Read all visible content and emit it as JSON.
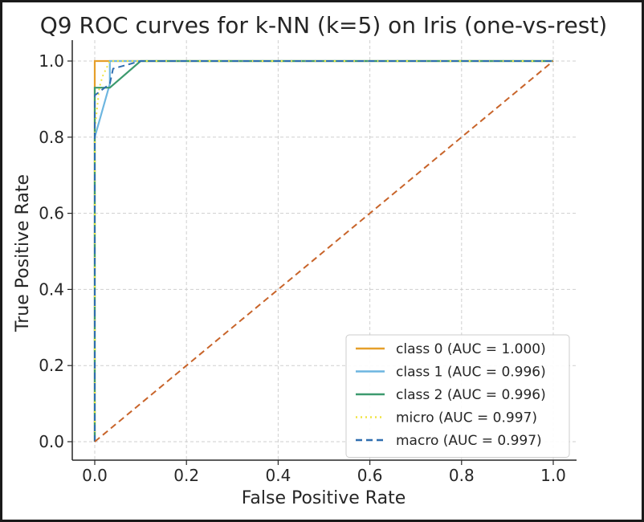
{
  "chart_data": {
    "type": "line",
    "title": "Q9 ROC curves for k-NN (k=5) on Iris (one-vs-rest)",
    "xlabel": "False Positive Rate",
    "ylabel": "True Positive Rate",
    "xlim": [
      -0.05,
      1.05
    ],
    "ylim": [
      -0.05,
      1.05
    ],
    "xticks": [
      0.0,
      0.2,
      0.4,
      0.6,
      0.8,
      1.0
    ],
    "yticks": [
      0.0,
      0.2,
      0.4,
      0.6,
      0.8,
      1.0
    ],
    "xtick_labels": [
      "0.0",
      "0.2",
      "0.4",
      "0.6",
      "0.8",
      "1.0"
    ],
    "ytick_labels": [
      "0.0",
      "0.2",
      "0.4",
      "0.6",
      "0.8",
      "1.0"
    ],
    "grid": true,
    "legend_position": "lower-right",
    "series": [
      {
        "name": "class 0 (AUC = 1.000)",
        "color": "#e69f2a",
        "style": "solid",
        "x": [
          0.0,
          0.0,
          0.0,
          0.033,
          1.0
        ],
        "y": [
          0.0,
          0.93,
          1.0,
          1.0,
          1.0
        ]
      },
      {
        "name": "class 1 (AUC = 0.996)",
        "color": "#6db6e0",
        "style": "solid",
        "x": [
          0.0,
          0.0,
          0.033,
          0.033,
          0.1,
          1.0
        ],
        "y": [
          0.0,
          0.8,
          0.94,
          1.0,
          1.0,
          1.0
        ]
      },
      {
        "name": "class 2 (AUC = 0.996)",
        "color": "#3c9a6e",
        "style": "solid",
        "x": [
          0.0,
          0.0,
          0.033,
          0.1,
          1.0
        ],
        "y": [
          0.0,
          0.93,
          0.93,
          1.0,
          1.0
        ]
      },
      {
        "name": "micro (AUC = 0.997)",
        "color": "#f0e442",
        "style": "dotted",
        "x": [
          0.0,
          0.0,
          0.01,
          0.017,
          0.033,
          1.0
        ],
        "y": [
          0.0,
          0.82,
          0.93,
          0.96,
          1.0,
          1.0
        ]
      },
      {
        "name": "macro (AUC = 0.997)",
        "color": "#2f6eb0",
        "style": "dashed",
        "x": [
          0.0,
          0.0,
          0.033,
          0.04,
          0.1,
          1.0
        ],
        "y": [
          0.0,
          0.91,
          0.94,
          0.98,
          1.0,
          1.0
        ]
      },
      {
        "color": "#c8642a",
        "style": "dashed",
        "x": [
          0.0,
          1.0
        ],
        "y": [
          0.0,
          1.0
        ]
      }
    ]
  }
}
